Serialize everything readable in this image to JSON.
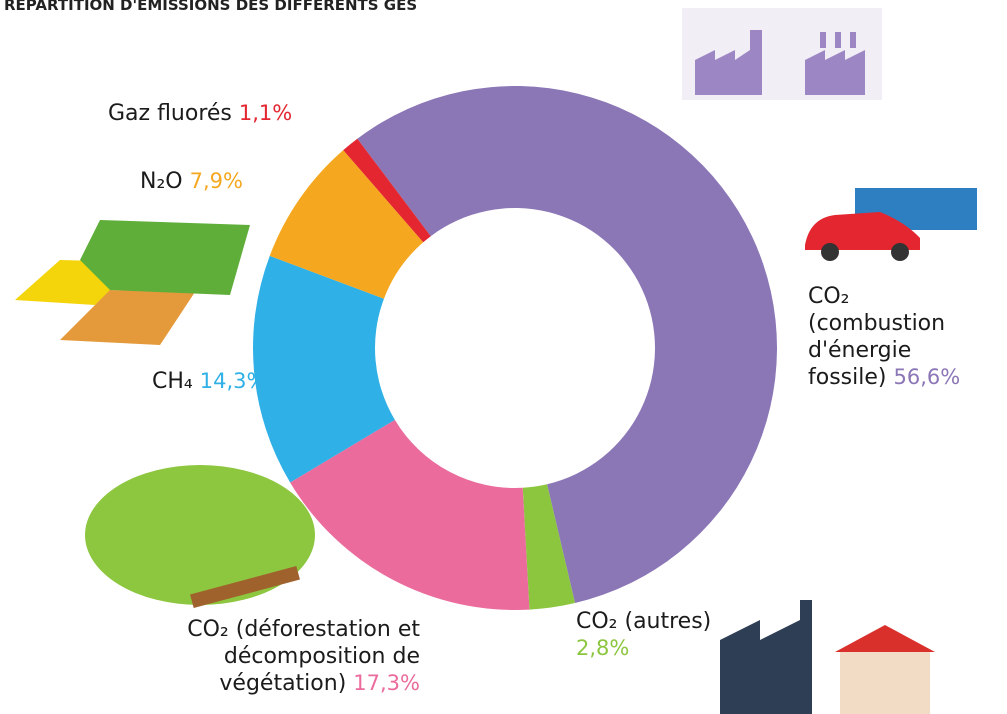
{
  "chart_data": {
    "type": "donut",
    "title": "REPARTITION D'EMISSIONS DES DIFFERENTS GES",
    "categories": [
      "CO₂ (combustion d'énergie fossile)",
      "CO₂ (autres)",
      "CO₂ (déforestation et décomposition de végétation)",
      "CH₄",
      "N₂O",
      "Gaz fluorés"
    ],
    "values": [
      56.6,
      2.8,
      17.3,
      14.3,
      7.9,
      1.1
    ],
    "value_labels": [
      "56,6%",
      "2,8%",
      "17,3%",
      "14,3%",
      "7,9%",
      "1,1%"
    ],
    "colors": [
      "#8b76b6",
      "#8cc63f",
      "#ea6b9c",
      "#2fb0e6",
      "#f5a81f",
      "#e3262f"
    ]
  }
}
